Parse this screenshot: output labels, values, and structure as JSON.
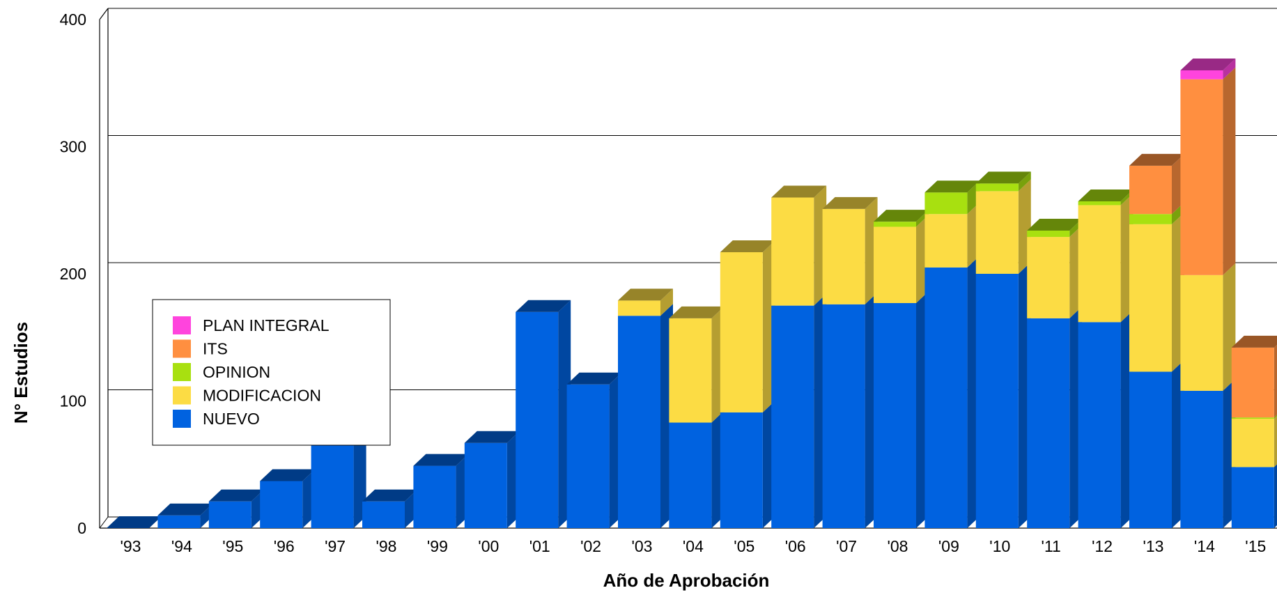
{
  "chart_data": {
    "type": "bar",
    "stacked": true,
    "three_d": true,
    "title": "",
    "xlabel": "Año de Aprobación",
    "ylabel": "N° Estudios",
    "ylim": [
      0,
      400
    ],
    "yticks": [
      0,
      100,
      200,
      300,
      400
    ],
    "grid": true,
    "legend_position": "left",
    "categories": [
      "'93",
      "'94",
      "'95",
      "'96",
      "'97",
      "'98",
      "'99",
      "'00",
      "'01",
      "'02",
      "'03",
      "'04",
      "'05",
      "'06",
      "'07",
      "'08",
      "'09",
      "'10",
      "'11",
      "'12",
      "'13",
      "'14",
      "'15"
    ],
    "series": [
      {
        "name": "NUEVO",
        "color": "#0062E0",
        "values": [
          0,
          10,
          21,
          37,
          75,
          21,
          49,
          67,
          170,
          113,
          167,
          83,
          91,
          175,
          176,
          177,
          205,
          200,
          165,
          162,
          123,
          108,
          48
        ]
      },
      {
        "name": "MODIFICACION",
        "color": "#FCDC44",
        "values": [
          0,
          0,
          0,
          0,
          0,
          0,
          0,
          0,
          0,
          0,
          12,
          82,
          126,
          85,
          75,
          60,
          42,
          65,
          64,
          92,
          116,
          91,
          38
        ]
      },
      {
        "name": "OPINION",
        "color": "#A8E010",
        "values": [
          0,
          0,
          0,
          0,
          0,
          0,
          0,
          0,
          0,
          0,
          0,
          0,
          0,
          0,
          0,
          4,
          17,
          6,
          5,
          3,
          8,
          0,
          1
        ]
      },
      {
        "name": "ITS",
        "color": "#FF8F40",
        "values": [
          0,
          0,
          0,
          0,
          0,
          0,
          0,
          0,
          0,
          0,
          0,
          0,
          0,
          0,
          0,
          0,
          0,
          0,
          0,
          0,
          38,
          154,
          55
        ]
      },
      {
        "name": "PLAN INTEGRAL",
        "color": "#FF44DD",
        "values": [
          0,
          0,
          0,
          0,
          0,
          0,
          0,
          0,
          0,
          0,
          0,
          0,
          0,
          0,
          0,
          0,
          0,
          0,
          0,
          0,
          0,
          7,
          0
        ]
      }
    ]
  }
}
